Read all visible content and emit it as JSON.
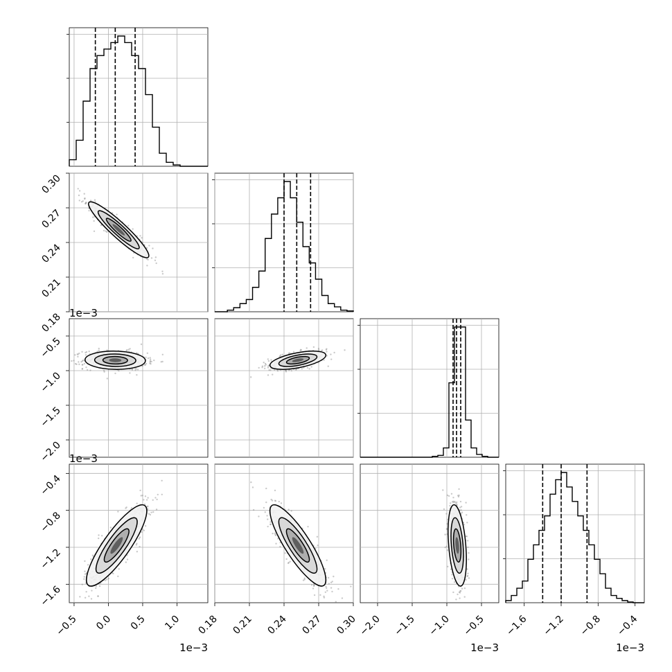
{
  "chart_data": {
    "type": "corner",
    "grid": true,
    "exponent_label": "1e−3",
    "parameters": [
      {
        "range": [
          -0.57,
          1.45
        ],
        "ticks": [
          "−0.5",
          "0.0",
          "0.5",
          "1.0"
        ],
        "tick_values": [
          -0.5,
          0.0,
          0.5,
          1.0
        ],
        "exponent": "1e−3",
        "quantiles": [
          -0.19,
          0.1,
          0.39
        ],
        "hist": [
          1,
          4,
          10,
          15,
          17,
          18,
          19,
          20,
          19,
          17,
          15,
          11,
          6,
          2,
          0.6,
          0.2,
          0,
          0,
          0,
          0
        ]
      },
      {
        "range": [
          0.18,
          0.3
        ],
        "ticks": [
          "0.18",
          "0.21",
          "0.24",
          "0.27",
          "0.30"
        ],
        "tick_values": [
          0.18,
          0.21,
          0.24,
          0.27,
          0.3
        ],
        "exponent": "",
        "quantiles": [
          0.24,
          0.251,
          0.263
        ],
        "hist": [
          0,
          0,
          0.2,
          0.5,
          1,
          1.5,
          3,
          5,
          9,
          12,
          14,
          16,
          14,
          11,
          8,
          6,
          4,
          2,
          1,
          0.6,
          0.2,
          0.1
        ]
      },
      {
        "range": [
          -2.25,
          -0.25
        ],
        "ticks": [
          "−2.0",
          "−1.5",
          "−1.0",
          "−0.5"
        ],
        "tick_values": [
          -2.0,
          -1.5,
          -1.0,
          -0.5
        ],
        "exponent": "1e−3",
        "quantiles": [
          -0.91,
          -0.86,
          -0.8
        ],
        "hist": [
          0,
          0,
          0,
          0,
          0,
          0,
          0,
          0,
          0,
          0,
          0,
          0,
          0,
          0.1,
          0.2,
          1,
          8,
          14,
          14,
          4,
          1,
          0.3,
          0.1,
          0,
          0
        ]
      },
      {
        "range": [
          -1.8,
          -0.3
        ],
        "ticks": [
          "−1.6",
          "−1.2",
          "−0.8",
          "−0.4"
        ],
        "tick_values": [
          -1.6,
          -1.2,
          -0.8,
          -0.4
        ],
        "exponent": "1e−3",
        "quantiles": [
          -1.4,
          -1.2,
          -0.92
        ],
        "hist": [
          0.3,
          1,
          2,
          3,
          6,
          8,
          10,
          12,
          15,
          17,
          18,
          16,
          14,
          12,
          10,
          8,
          6,
          4,
          2,
          1,
          0.6,
          0.3,
          0.1,
          0,
          0
        ]
      }
    ],
    "pairs": [
      {
        "row": 1,
        "col": 0,
        "center": [
          0.15,
          0.251
        ],
        "spread": [
          0.2,
          0.011
        ],
        "rho": -0.93
      },
      {
        "row": 2,
        "col": 0,
        "center": [
          0.1,
          -0.85
        ],
        "spread": [
          0.2,
          0.06
        ],
        "rho": -0.05
      },
      {
        "row": 2,
        "col": 1,
        "center": [
          0.252,
          -0.85
        ],
        "spread": [
          0.011,
          0.06
        ],
        "rho": 0.55
      },
      {
        "row": 3,
        "col": 0,
        "center": [
          0.12,
          -1.18
        ],
        "spread": [
          0.2,
          0.2
        ],
        "rho": 0.85
      },
      {
        "row": 3,
        "col": 1,
        "center": [
          0.252,
          -1.18
        ],
        "spread": [
          0.011,
          0.2
        ],
        "rho": -0.85
      },
      {
        "row": 3,
        "col": 2,
        "center": [
          -0.85,
          -1.18
        ],
        "spread": [
          0.06,
          0.2
        ],
        "rho": -0.35
      }
    ]
  }
}
